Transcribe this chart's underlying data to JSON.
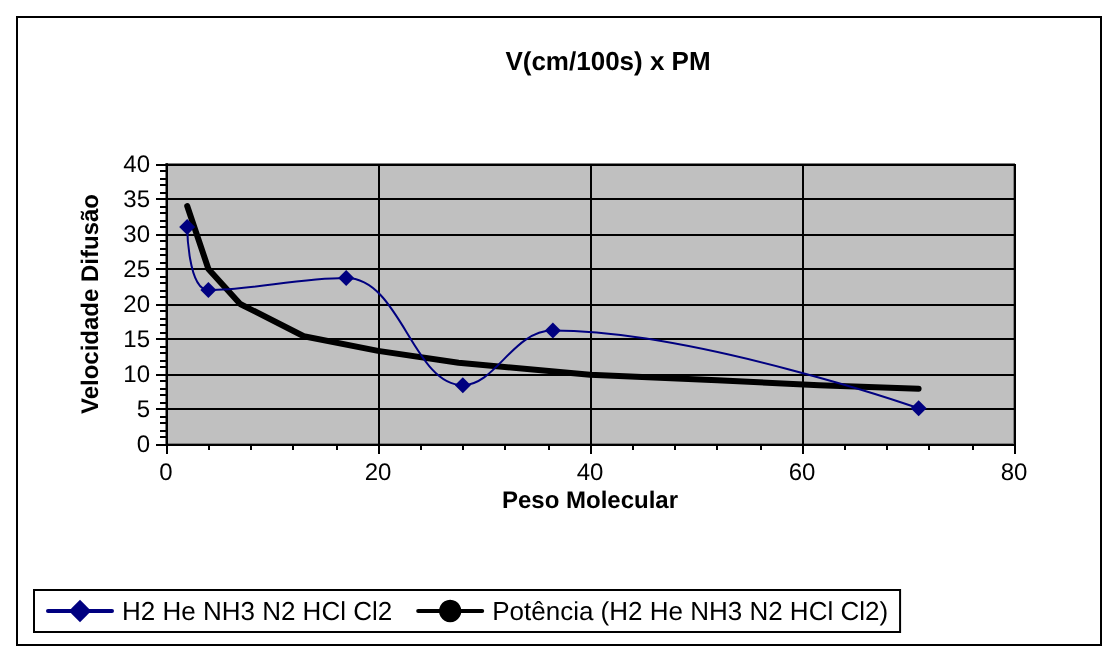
{
  "chart_data": {
    "type": "line",
    "title": "V(cm/100s) x PM",
    "xlabel": "Peso Molecular",
    "ylabel": "Velocidade Difusão",
    "xlim": [
      0,
      80
    ],
    "xticks": [
      0,
      20,
      40,
      60,
      80
    ],
    "ylim": [
      0,
      40
    ],
    "yticks": [
      0,
      5,
      10,
      15,
      20,
      25,
      30,
      35,
      40
    ],
    "grid": true,
    "legend": "bottom",
    "series": [
      {
        "name": "H2 He NH3 N2 HCl Cl2",
        "color": "#000080",
        "marker": "diamond",
        "x": [
          2,
          4,
          17,
          28,
          36.5,
          71
        ],
        "values": [
          31,
          22,
          23.7,
          8.4,
          16.2,
          5.1
        ]
      },
      {
        "name": "Potência (H2 He NH3 N2 HCl Cl2)",
        "color": "#000000",
        "marker": "none",
        "x": [
          2,
          4,
          7,
          13,
          20,
          27.6,
          40,
          52,
          61.6,
          71
        ],
        "values": [
          34,
          25,
          20,
          15.4,
          13.3,
          11.6,
          9.9,
          9.1,
          8.4,
          7.9
        ]
      }
    ]
  }
}
